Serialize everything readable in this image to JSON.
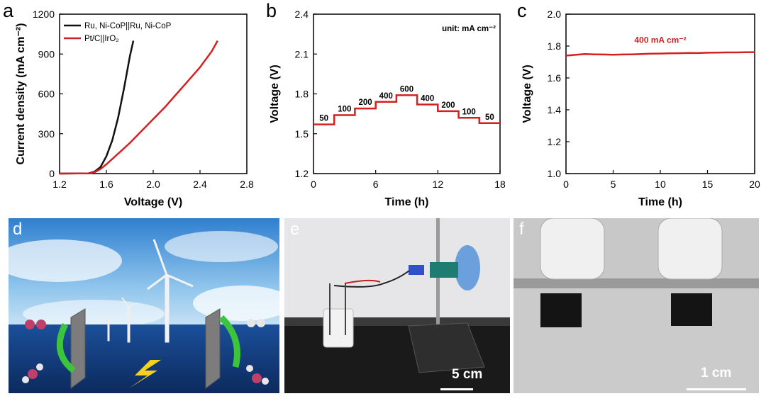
{
  "panels": {
    "a": "a",
    "b": "b",
    "c": "c",
    "d": "d",
    "e": "e",
    "f": "f"
  },
  "colors": {
    "black_series": "#111111",
    "red_series": "#d42020",
    "red_text": "#d42020"
  },
  "chart_data": [
    {
      "type": "line",
      "xlabel": "Voltage (V)",
      "ylabel": "Current density (mA cm⁻²)",
      "xlim": [
        1.2,
        2.8
      ],
      "ylim": [
        0,
        1200
      ],
      "xticks": [
        "1.2",
        "1.6",
        "2.0",
        "2.4",
        "2.8"
      ],
      "yticks": [
        "0",
        "300",
        "600",
        "900",
        "1200"
      ],
      "legend_position": "top-left",
      "series": [
        {
          "name": "Ru, Ni-CoP||Ru, Ni-CoP",
          "color": "#111111",
          "x": [
            1.2,
            1.45,
            1.5,
            1.55,
            1.6,
            1.65,
            1.7,
            1.75,
            1.8,
            1.83
          ],
          "y": [
            0,
            2,
            15,
            50,
            130,
            250,
            420,
            640,
            880,
            1000
          ]
        },
        {
          "name": "Pt/C||IrO₂",
          "color": "#d42020",
          "x": [
            1.2,
            1.45,
            1.5,
            1.55,
            1.6,
            1.7,
            1.8,
            1.9,
            2.0,
            2.1,
            2.2,
            2.3,
            2.4,
            2.5,
            2.55
          ],
          "y": [
            0,
            2,
            10,
            35,
            70,
            150,
            230,
            320,
            410,
            500,
            600,
            700,
            800,
            920,
            1000
          ]
        }
      ]
    },
    {
      "type": "line",
      "xlabel": "Time (h)",
      "ylabel": "Voltage (V)",
      "xlim": [
        0,
        18
      ],
      "ylim": [
        1.2,
        2.4
      ],
      "xticks": [
        "0",
        "6",
        "12",
        "18"
      ],
      "yticks": [
        "1.2",
        "1.5",
        "1.8",
        "2.1",
        "2.4"
      ],
      "annotation": "unit: mA cm⁻²",
      "steps": [
        {
          "label": "50",
          "start": 0,
          "end": 2,
          "voltage": 1.57
        },
        {
          "label": "100",
          "start": 2,
          "end": 4,
          "voltage": 1.64
        },
        {
          "label": "200",
          "start": 4,
          "end": 6,
          "voltage": 1.69
        },
        {
          "label": "400",
          "start": 6,
          "end": 8,
          "voltage": 1.74
        },
        {
          "label": "600",
          "start": 8,
          "end": 10,
          "voltage": 1.79
        },
        {
          "label": "400",
          "start": 10,
          "end": 12,
          "voltage": 1.72
        },
        {
          "label": "200",
          "start": 12,
          "end": 14,
          "voltage": 1.67
        },
        {
          "label": "100",
          "start": 14,
          "end": 16,
          "voltage": 1.62
        },
        {
          "label": "50",
          "start": 16,
          "end": 18,
          "voltage": 1.58
        }
      ]
    },
    {
      "type": "line",
      "xlabel": "Time (h)",
      "ylabel": "Voltage (V)",
      "xlim": [
        0,
        20
      ],
      "ylim": [
        1.0,
        2.0
      ],
      "xticks": [
        "0",
        "5",
        "10",
        "15",
        "20"
      ],
      "yticks": [
        "1.0",
        "1.2",
        "1.4",
        "1.6",
        "1.8",
        "2.0"
      ],
      "annotation": "400 mA cm⁻²",
      "series": [
        {
          "color": "#d42020",
          "x": [
            0,
            1,
            2,
            3,
            4,
            5,
            6,
            7,
            8,
            9,
            10,
            11,
            12,
            13,
            14,
            15,
            16,
            17,
            18,
            19,
            20
          ],
          "y": [
            1.74,
            1.745,
            1.75,
            1.748,
            1.747,
            1.746,
            1.747,
            1.748,
            1.75,
            1.752,
            1.753,
            1.754,
            1.755,
            1.757,
            1.756,
            1.758,
            1.759,
            1.76,
            1.76,
            1.761,
            1.762
          ]
        }
      ]
    }
  ],
  "photos": {
    "e_scale": "5 cm",
    "f_scale": "1 cm"
  }
}
